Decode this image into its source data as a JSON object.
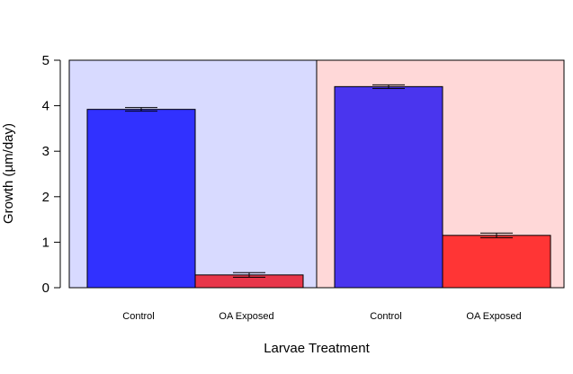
{
  "chart_data": {
    "type": "bar",
    "title": "",
    "xlabel": "Larvae Treatment",
    "ylabel": "Growth (µm/day)",
    "ylim": [
      0,
      5
    ],
    "yticks": [
      "0",
      "1",
      "2",
      "3",
      "4",
      "5"
    ],
    "grid": false,
    "panels": [
      {
        "background_color": "#d8daff",
        "bars": [
          {
            "category": "Control",
            "value": 3.92,
            "error": 0.04,
            "color": "#3131ff"
          },
          {
            "category": "OA Exposed",
            "value": 0.28,
            "error": 0.05,
            "color": "#e8364a"
          }
        ]
      },
      {
        "background_color": "#ffd8d8",
        "bars": [
          {
            "category": "Control",
            "value": 4.42,
            "error": 0.04,
            "color": "#4a35ee"
          },
          {
            "category": "OA Exposed",
            "value": 1.15,
            "error": 0.05,
            "color": "#ff3535"
          }
        ]
      }
    ]
  }
}
